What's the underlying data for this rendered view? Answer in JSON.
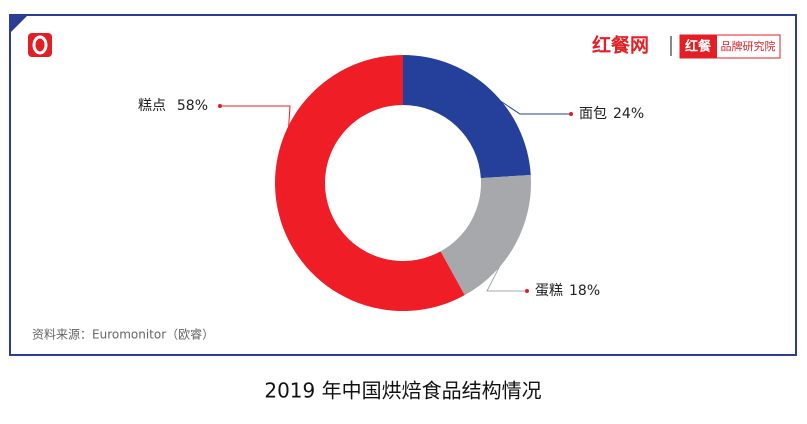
{
  "chart_data": {
    "type": "donut",
    "title": "2019 年中国烘焙食品结构情况",
    "source": "资料来源：Euromonitor（欧睿）",
    "brand": {
      "name": "红餐网",
      "badge": "红餐",
      "institute": "品牌研究院"
    },
    "categories": [
      "面包",
      "蛋糕",
      "糕点"
    ],
    "values": [
      24,
      18,
      58
    ],
    "value_labels": [
      "24%",
      "18%",
      "58%"
    ],
    "colors": [
      "#24409a",
      "#a7a8ac",
      "#ee1d26"
    ]
  }
}
